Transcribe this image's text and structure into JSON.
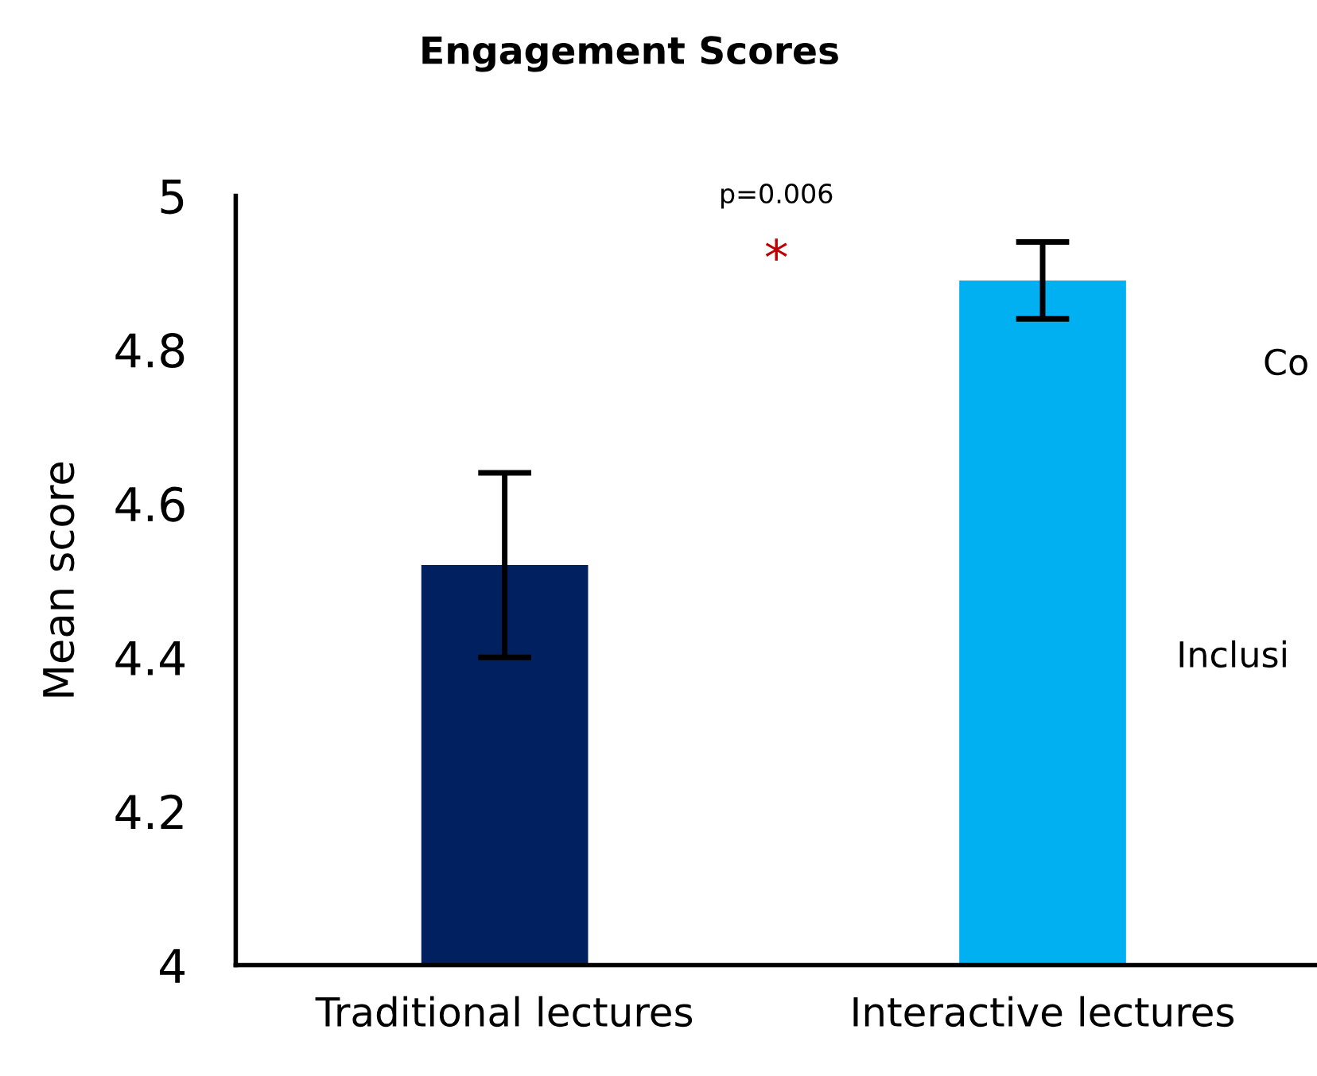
{
  "chart_data": {
    "type": "bar",
    "title": "Engagement Scores",
    "ylabel": "Mean score",
    "categories": [
      "Traditional lectures",
      "Interactive lectures"
    ],
    "values": [
      4.52,
      4.89
    ],
    "colors": [
      "#002060",
      "#00b0f0"
    ],
    "errors": [
      [
        4.4,
        4.64
      ],
      [
        4.84,
        4.94
      ]
    ],
    "ylim": [
      4,
      5
    ],
    "yticks": [
      4,
      4.2,
      4.4,
      4.6,
      4.8,
      5
    ],
    "grid": false,
    "legend": false,
    "annotations": [
      "p=0.006",
      "*",
      "Co",
      "Inclusi"
    ]
  }
}
